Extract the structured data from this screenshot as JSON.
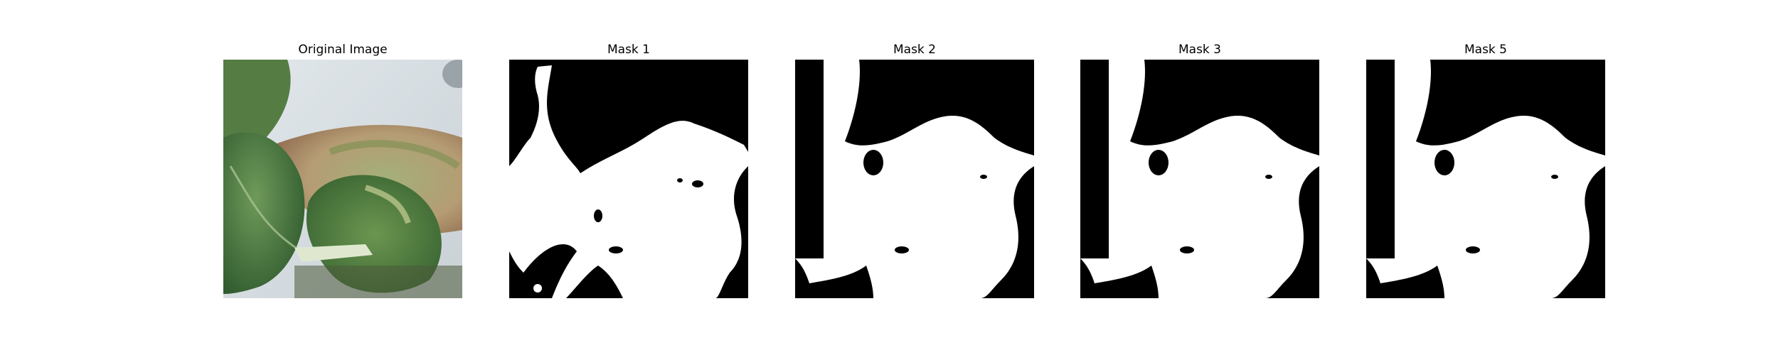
{
  "panels": [
    {
      "title": "Original Image"
    },
    {
      "title": "Mask 1"
    },
    {
      "title": "Mask 2"
    },
    {
      "title": "Mask 3"
    },
    {
      "title": "Mask 5"
    }
  ],
  "colors": {
    "background": "#ffffff",
    "mask_fg": "#ffffff",
    "mask_bg": "#000000",
    "leaf_dark": "#3f6a38",
    "leaf_mid": "#5d8a4c",
    "leaf_light": "#8fae72",
    "leaf_tan": "#b39b78",
    "wall": "#d7dee2"
  }
}
